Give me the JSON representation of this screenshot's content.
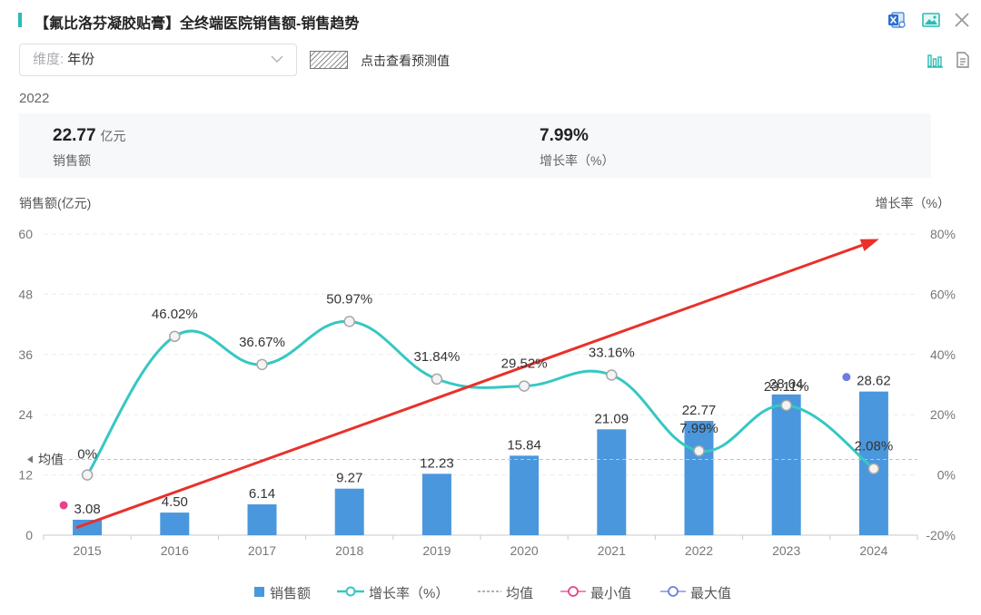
{
  "header": {
    "title": "【氟比洛芬凝胶贴膏】全终端医院销售额-销售趋势",
    "icons": [
      "excel-export-icon",
      "image-export-icon",
      "close-icon"
    ]
  },
  "controls": {
    "dimension_label": "维度:",
    "dimension_value": "年份",
    "forecast_label": "点击查看预测值",
    "icons": [
      "bar-chart-icon",
      "document-icon"
    ]
  },
  "summary": {
    "year": "2022",
    "sales_value": "22.77",
    "sales_unit": "亿元",
    "sales_caption": "销售额",
    "growth_value": "7.99%",
    "growth_caption": "增长率（%）"
  },
  "chart_data": {
    "type": "bar",
    "categories": [
      "2015",
      "2016",
      "2017",
      "2018",
      "2019",
      "2020",
      "2021",
      "2022",
      "2023",
      "2024"
    ],
    "series": [
      {
        "name": "销售额",
        "type": "bar",
        "axis": "left",
        "color": "#4a97dd",
        "values": [
          3.08,
          4.5,
          6.14,
          9.27,
          12.23,
          15.84,
          21.09,
          22.77,
          28.04,
          28.62
        ],
        "labels": [
          "3.08",
          "4.50",
          "6.14",
          "9.27",
          "12.23",
          "15.84",
          "21.09",
          "22.77",
          "28.04",
          "28.62"
        ]
      },
      {
        "name": "增长率（%）",
        "type": "line",
        "axis": "right",
        "color": "#36c7c3",
        "values": [
          0,
          46.02,
          36.67,
          50.97,
          31.84,
          29.52,
          33.16,
          7.99,
          23.11,
          2.08
        ],
        "labels": [
          "0%",
          "46.02%",
          "36.67%",
          "50.97%",
          "31.84%",
          "29.52%",
          "33.16%",
          "7.99%",
          "23.11%",
          "2.08%"
        ]
      }
    ],
    "left_axis": {
      "title": "销售额(亿元)",
      "min": 0,
      "max": 60,
      "ticks": [
        "0",
        "12",
        "24",
        "36",
        "48",
        "60"
      ]
    },
    "right_axis": {
      "title": "增长率（%）",
      "min": -20,
      "max": 80,
      "ticks": [
        "-20%",
        "0%",
        "20%",
        "40%",
        "60%",
        "80%"
      ]
    },
    "average_line": {
      "label": "均值",
      "value": 15.1
    },
    "min_marker": {
      "value": 3.08,
      "color": "#e8428a"
    },
    "max_marker": {
      "value": 28.62,
      "color": "#6b7fe0"
    },
    "trend_arrow": {
      "color": "#e8312a",
      "from": {
        "x": "2015",
        "y": 1.5
      },
      "to": {
        "x": "2024",
        "y": 59
      }
    },
    "grid": true,
    "legend": {
      "position": "bottom-center",
      "items": [
        "销售额",
        "增长率（%）",
        "均值",
        "最小值",
        "最大值"
      ]
    }
  }
}
